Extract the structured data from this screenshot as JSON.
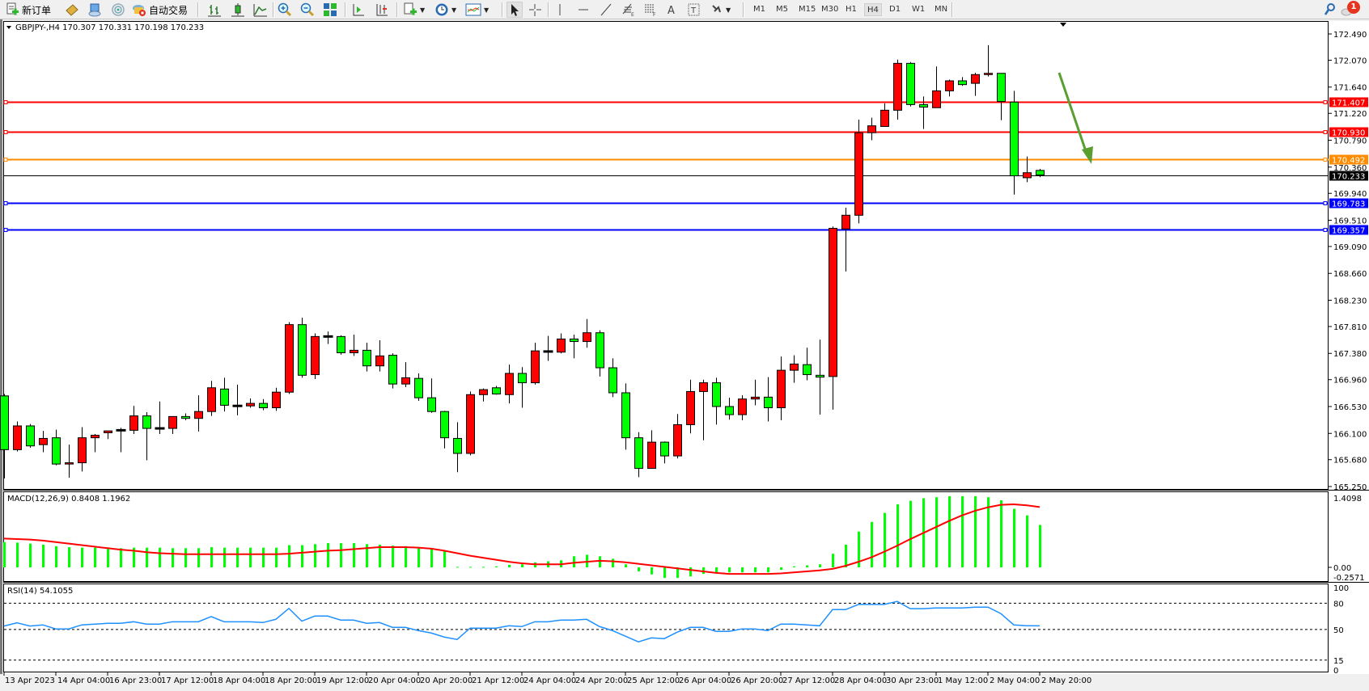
{
  "toolbar": {
    "new_order_label": "新订单",
    "auto_trading_label": "自动交易",
    "timeframes": [
      "M1",
      "M5",
      "M15",
      "M30",
      "H1",
      "H4",
      "D1",
      "W1",
      "MN"
    ],
    "active_timeframe": "H4",
    "notification_count": "1",
    "icons": [
      "new-order-icon",
      "metaeditor-icon",
      "market-watch-icon",
      "signals-icon",
      "auto-trading-icon",
      "bar-chart-icon",
      "candlestick-icon",
      "line-chart-icon",
      "zoom-in-icon",
      "zoom-out-icon",
      "tile-windows-icon",
      "auto-scroll-icon",
      "chart-shift-icon",
      "indicators-icon",
      "periods-icon",
      "templates-icon",
      "cursor-icon",
      "crosshair-icon",
      "vertical-line-icon",
      "horizontal-line-icon",
      "trendline-icon",
      "fibonacci-icon",
      "channel-icon",
      "text-icon",
      "text-label-icon",
      "arrows-icon",
      "search-icon",
      "notification-icon"
    ]
  },
  "chart": {
    "header": "GBPJPY-,H4  170.307 170.331 170.198 170.233",
    "macd_label": "MACD(12,26,9) 0.8408 1.1962",
    "rsi_label": "RSI(14) 54.1055",
    "price_ticks": [
      "172.490",
      "172.070",
      "171.640",
      "171.220",
      "170.790",
      "170.360",
      "169.940",
      "169.510",
      "169.090",
      "168.660",
      "168.230",
      "167.810",
      "167.380",
      "166.960",
      "166.530",
      "166.100",
      "165.680",
      "165.250"
    ],
    "levels": [
      {
        "price": "171.407",
        "color": "#ff0000"
      },
      {
        "price": "170.930",
        "color": "#ff0000"
      },
      {
        "price": "170.492",
        "color": "#ff8c00"
      },
      {
        "price": "169.783",
        "color": "#0000ff"
      },
      {
        "price": "169.357",
        "color": "#0000ff"
      }
    ],
    "bid": {
      "price": "170.233",
      "color": "#000000"
    },
    "macd_ticks": [
      "1.4098",
      "0.00",
      "-0.2571"
    ],
    "rsi_ticks": [
      "100",
      "80",
      "50",
      "15",
      "0"
    ],
    "time_labels": [
      "13 Apr 2023",
      "14 Apr 04:00",
      "16 Apr 23:00",
      "17 Apr 12:00",
      "18 Apr 04:00",
      "18 Apr 20:00",
      "19 Apr 12:00",
      "20 Apr 04:00",
      "20 Apr 20:00",
      "21 Apr 12:00",
      "24 Apr 04:00",
      "24 Apr 20:00",
      "25 Apr 12:00",
      "26 Apr 04:00",
      "26 Apr 20:00",
      "27 Apr 12:00",
      "28 Apr 04:00",
      "30 Apr 23:00",
      "1 May 12:00",
      "2 May 04:00",
      "2 May 20:00"
    ],
    "colors": {
      "bull": "#ff0000",
      "bear": "#00ff00",
      "macd_hist": "#00ff00",
      "macd_signal": "#ff0000",
      "rsi": "#1e90ff",
      "annotation_arrow": "#5a9e2f"
    }
  },
  "chart_data": {
    "type": "candlestick",
    "symbol": "GBPJPY-",
    "timeframe": "H4",
    "ylim": [
      165.25,
      172.49
    ],
    "ohlc": [
      [
        166.7,
        166.73,
        165.38,
        165.84
      ],
      [
        165.84,
        166.29,
        165.81,
        166.22
      ],
      [
        166.22,
        166.25,
        165.87,
        165.9
      ],
      [
        165.92,
        166.14,
        165.8,
        166.02
      ],
      [
        166.03,
        166.16,
        165.59,
        165.61
      ],
      [
        165.61,
        165.92,
        165.39,
        165.63
      ],
      [
        165.63,
        166.2,
        165.49,
        166.03
      ],
      [
        166.03,
        166.09,
        165.8,
        166.07
      ],
      [
        166.11,
        166.14,
        166.01,
        166.14
      ],
      [
        166.15,
        166.19,
        165.8,
        166.15
      ],
      [
        166.15,
        166.54,
        166.09,
        166.38
      ],
      [
        166.38,
        166.44,
        165.67,
        166.18
      ],
      [
        166.18,
        166.61,
        166.09,
        166.18
      ],
      [
        166.18,
        166.37,
        166.09,
        166.37
      ],
      [
        166.37,
        166.42,
        166.31,
        166.34
      ],
      [
        166.34,
        166.71,
        166.13,
        166.45
      ],
      [
        166.45,
        166.94,
        166.38,
        166.83
      ],
      [
        166.81,
        166.99,
        166.45,
        166.55
      ],
      [
        166.54,
        166.88,
        166.39,
        166.54
      ],
      [
        166.54,
        166.66,
        166.51,
        166.58
      ],
      [
        166.58,
        166.65,
        166.47,
        166.51
      ],
      [
        166.51,
        166.83,
        166.46,
        166.76
      ],
      [
        166.76,
        167.88,
        166.73,
        167.84
      ],
      [
        167.84,
        167.95,
        166.99,
        167.03
      ],
      [
        167.04,
        167.7,
        166.97,
        167.65
      ],
      [
        167.65,
        167.73,
        167.53,
        167.65
      ],
      [
        167.65,
        167.67,
        167.36,
        167.39
      ],
      [
        167.39,
        167.68,
        167.34,
        167.43
      ],
      [
        167.43,
        167.55,
        167.09,
        167.18
      ],
      [
        167.18,
        167.59,
        167.09,
        167.34
      ],
      [
        167.35,
        167.38,
        166.82,
        166.89
      ],
      [
        166.89,
        167.24,
        166.84,
        166.99
      ],
      [
        166.98,
        167.06,
        166.62,
        166.67
      ],
      [
        166.67,
        166.98,
        166.43,
        166.45
      ],
      [
        166.45,
        166.46,
        165.86,
        166.03
      ],
      [
        166.02,
        166.28,
        165.48,
        165.78
      ],
      [
        165.78,
        166.77,
        165.75,
        166.72
      ],
      [
        166.72,
        166.82,
        166.61,
        166.8
      ],
      [
        166.83,
        166.86,
        166.72,
        166.73
      ],
      [
        166.72,
        167.2,
        166.58,
        167.06
      ],
      [
        167.06,
        167.16,
        166.51,
        166.91
      ],
      [
        166.91,
        167.55,
        166.88,
        167.42
      ],
      [
        167.41,
        167.66,
        167.26,
        167.41
      ],
      [
        167.4,
        167.7,
        167.38,
        167.61
      ],
      [
        167.61,
        167.68,
        167.3,
        167.57
      ],
      [
        167.57,
        167.93,
        167.47,
        167.71
      ],
      [
        167.71,
        167.75,
        167.01,
        167.15
      ],
      [
        167.15,
        167.3,
        166.68,
        166.75
      ],
      [
        166.75,
        166.9,
        165.84,
        166.03
      ],
      [
        166.03,
        166.12,
        165.4,
        165.54
      ],
      [
        165.54,
        166.15,
        165.54,
        165.96
      ],
      [
        165.96,
        165.97,
        165.62,
        165.74
      ],
      [
        165.74,
        166.41,
        165.7,
        166.24
      ],
      [
        166.24,
        166.96,
        166.1,
        166.77
      ],
      [
        166.77,
        166.96,
        165.99,
        166.91
      ],
      [
        166.91,
        166.99,
        166.24,
        166.53
      ],
      [
        166.53,
        166.67,
        166.32,
        166.4
      ],
      [
        166.4,
        166.71,
        166.31,
        166.65
      ],
      [
        166.65,
        166.96,
        166.55,
        166.68
      ],
      [
        166.68,
        167.0,
        166.29,
        166.51
      ],
      [
        166.51,
        167.33,
        166.31,
        167.11
      ],
      [
        167.11,
        167.35,
        166.91,
        167.21
      ],
      [
        167.2,
        167.47,
        166.95,
        167.04
      ],
      [
        167.03,
        167.6,
        166.4,
        167.0
      ],
      [
        167.01,
        169.41,
        166.48,
        169.38
      ],
      [
        169.37,
        169.71,
        168.69,
        169.59
      ],
      [
        169.59,
        171.12,
        169.46,
        170.91
      ],
      [
        170.91,
        171.15,
        170.79,
        171.02
      ],
      [
        171.01,
        171.38,
        171.01,
        171.27
      ],
      [
        171.27,
        172.08,
        171.12,
        172.02
      ],
      [
        172.02,
        172.04,
        171.33,
        171.36
      ],
      [
        171.36,
        171.49,
        170.97,
        171.32
      ],
      [
        171.31,
        171.97,
        171.31,
        171.58
      ],
      [
        171.58,
        171.76,
        171.49,
        171.74
      ],
      [
        171.74,
        171.8,
        171.66,
        171.68
      ],
      [
        171.7,
        171.87,
        171.5,
        171.84
      ],
      [
        171.84,
        172.31,
        171.81,
        171.86
      ],
      [
        171.86,
        171.86,
        171.11,
        171.41
      ],
      [
        171.4,
        171.58,
        169.92,
        170.22
      ],
      [
        170.19,
        170.53,
        170.12,
        170.27
      ],
      [
        170.307,
        170.331,
        170.198,
        170.233
      ]
    ],
    "macd": {
      "ylim": [
        -0.2571,
        1.4098
      ],
      "histogram": [
        0.5,
        0.49,
        0.47,
        0.45,
        0.42,
        0.4,
        0.39,
        0.39,
        0.38,
        0.38,
        0.39,
        0.39,
        0.39,
        0.38,
        0.38,
        0.38,
        0.4,
        0.39,
        0.39,
        0.39,
        0.39,
        0.39,
        0.44,
        0.44,
        0.46,
        0.48,
        0.48,
        0.48,
        0.46,
        0.45,
        0.43,
        0.42,
        0.39,
        0.36,
        0.32,
        0.01,
        0.01,
        0.01,
        0.02,
        0.05,
        0.06,
        0.1,
        0.12,
        0.14,
        0.22,
        0.25,
        0.22,
        0.17,
        0.06,
        -0.08,
        -0.14,
        -0.21,
        -0.21,
        -0.18,
        -0.13,
        -0.11,
        -0.1,
        -0.1,
        -0.1,
        -0.1,
        -0.05,
        0.02,
        0.04,
        0.06,
        0.27,
        0.45,
        0.71,
        0.9,
        1.08,
        1.25,
        1.32,
        1.37,
        1.39,
        1.41,
        1.41,
        1.41,
        1.39,
        1.33,
        1.16,
        1.03,
        0.8408
      ],
      "signal": [
        0.57,
        0.56,
        0.55,
        0.53,
        0.5,
        0.47,
        0.44,
        0.41,
        0.38,
        0.35,
        0.33,
        0.3,
        0.28,
        0.27,
        0.26,
        0.26,
        0.26,
        0.26,
        0.26,
        0.26,
        0.26,
        0.26,
        0.27,
        0.29,
        0.31,
        0.33,
        0.34,
        0.36,
        0.38,
        0.4,
        0.4,
        0.4,
        0.39,
        0.37,
        0.33,
        0.28,
        0.23,
        0.19,
        0.15,
        0.11,
        0.08,
        0.06,
        0.06,
        0.06,
        0.09,
        0.11,
        0.13,
        0.12,
        0.1,
        0.07,
        0.04,
        0.01,
        -0.02,
        -0.05,
        -0.08,
        -0.11,
        -0.13,
        -0.13,
        -0.13,
        -0.13,
        -0.12,
        -0.1,
        -0.08,
        -0.06,
        -0.03,
        0.03,
        0.11,
        0.2,
        0.31,
        0.43,
        0.56,
        0.68,
        0.8,
        0.92,
        1.03,
        1.12,
        1.19,
        1.24,
        1.25,
        1.23,
        1.1962
      ]
    },
    "rsi": {
      "ylim": [
        0,
        100
      ],
      "levels": [
        80,
        50,
        15
      ],
      "values": [
        53.9,
        57.6,
        53.9,
        55.2,
        50.6,
        50.6,
        55.2,
        56.1,
        57.0,
        57.0,
        58.8,
        56.1,
        56.1,
        58.8,
        58.8,
        58.8,
        64.7,
        58.8,
        58.8,
        58.8,
        57.9,
        61.6,
        74.0,
        59.5,
        65.3,
        65.3,
        60.7,
        60.7,
        57.0,
        57.9,
        52.4,
        52.4,
        48.7,
        45.9,
        41.3,
        38.6,
        51.5,
        51.5,
        51.5,
        54.2,
        53.3,
        58.8,
        58.8,
        60.7,
        60.7,
        61.6,
        53.3,
        48.7,
        42.3,
        35.8,
        40.4,
        39.5,
        46.9,
        52.4,
        52.4,
        47.8,
        47.8,
        50.6,
        50.6,
        48.7,
        56.1,
        56.1,
        55.2,
        54.2,
        72.7,
        72.7,
        78.6,
        78.6,
        78.6,
        82.0,
        73.7,
        73.7,
        74.6,
        74.6,
        74.6,
        75.5,
        75.5,
        68.1,
        55.2,
        54.2,
        54.1055
      ]
    }
  }
}
